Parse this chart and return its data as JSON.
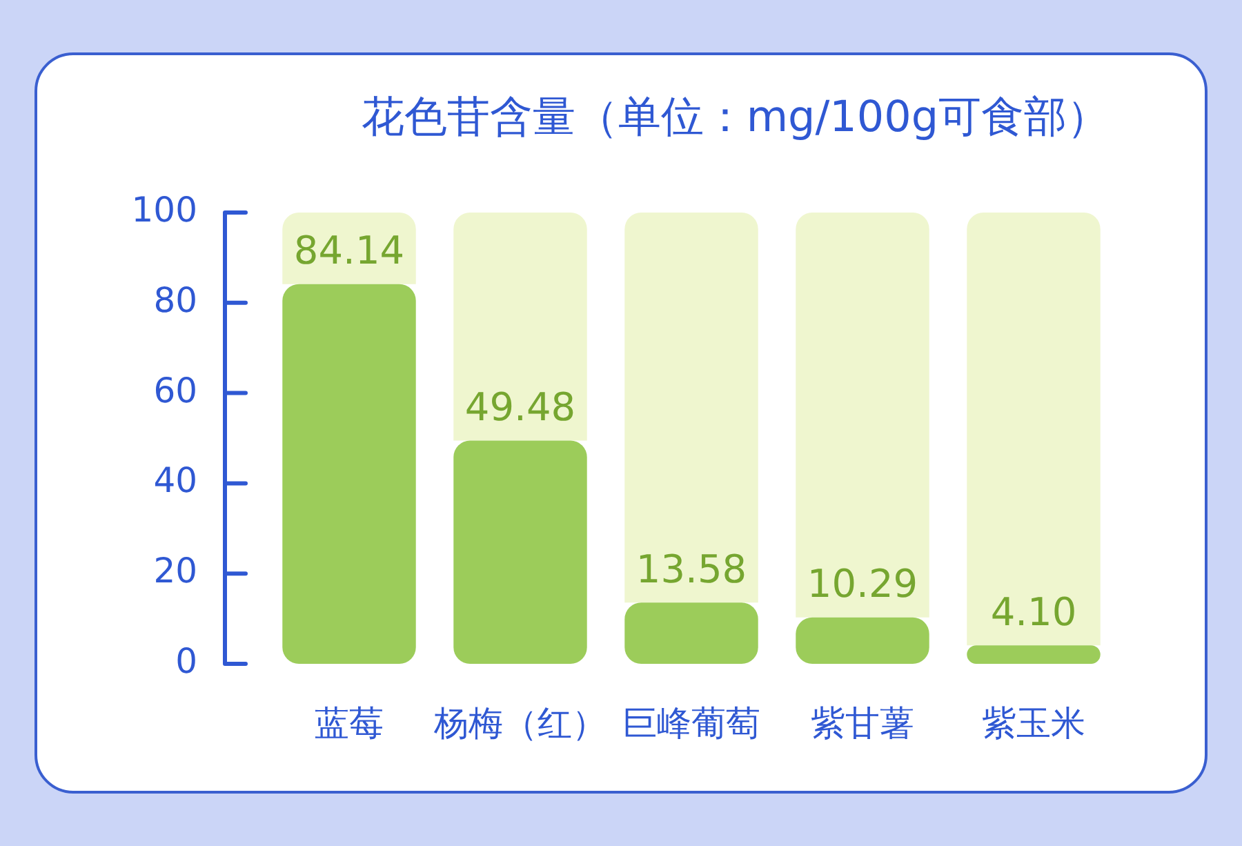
{
  "chart_data": {
    "type": "bar",
    "title": "花色苷含量（单位：mg/100g可食部）",
    "categories": [
      "蓝莓",
      "杨梅（红）",
      "巨峰葡萄",
      "紫甘薯",
      "紫玉米"
    ],
    "series": [
      {
        "color": "#9ccc5a",
        "values": [
          84.14,
          49.48,
          13.58,
          10.29,
          4.1
        ],
        "value_labels": [
          "84.14",
          "49.48",
          "13.58",
          "10.29",
          "4.10"
        ]
      },
      {
        "color": "#eff6cf",
        "values": [
          15.86,
          50.52,
          86.42,
          89.71,
          95.9
        ]
      }
    ],
    "stacked": true,
    "ylim": [
      0,
      100
    ],
    "yticks": [
      0,
      20,
      40,
      60,
      80,
      100
    ],
    "grid": false,
    "legend": false
  }
}
